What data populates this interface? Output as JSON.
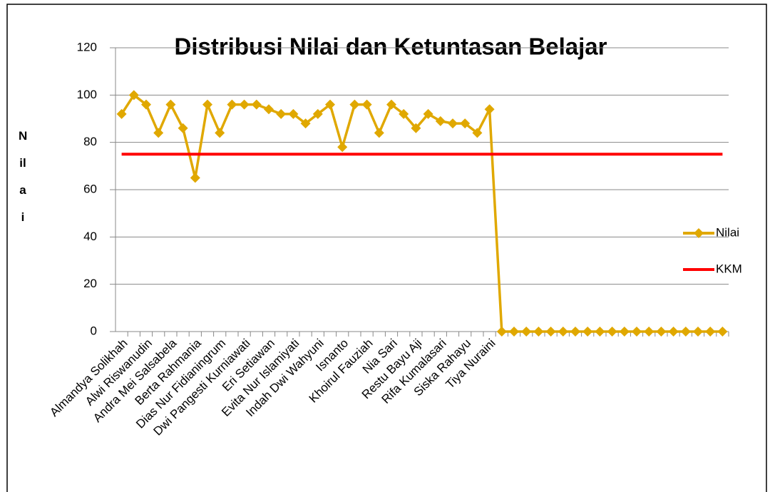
{
  "chart_data": {
    "type": "line",
    "title": "Distribusi Nilai dan Ketuntasan Belajar",
    "y_label": "Nilai",
    "categories": [
      "Almandya Solikhah",
      null,
      "Alwi Riswanudin",
      null,
      "Andra Mei Salsabela",
      null,
      "Berta Rahmania",
      null,
      "Dias Nur Fidianingrum",
      null,
      "Dwi Pangesti Kurniawati",
      null,
      "Eri Setiawan",
      null,
      "Evita Nur Islamiyati",
      null,
      "Indah Dwi Wahyuni",
      null,
      "Isnanto",
      null,
      "Khoirul Fauziah",
      null,
      "Nia Sari",
      null,
      "Restu Bayu Aji",
      null,
      "Rifa Kumalasari",
      null,
      "Siska Rahayu",
      null,
      "Tiya Nuraini",
      null,
      null,
      null,
      null,
      null,
      null,
      null,
      null,
      null,
      null,
      null,
      null,
      null,
      null,
      null,
      null,
      null,
      null,
      null
    ],
    "series": [
      {
        "name": "Nilai",
        "color": "#e0a800",
        "marker": "diamond",
        "values": [
          92,
          100,
          96,
          84,
          96,
          86,
          65,
          96,
          84,
          96,
          96,
          96,
          94,
          92,
          92,
          88,
          92,
          96,
          78,
          96,
          96,
          84,
          96,
          92,
          86,
          92,
          89,
          88,
          88,
          84,
          94,
          0,
          0,
          0,
          0,
          0,
          0,
          0,
          0,
          0,
          0,
          0,
          0,
          0,
          0,
          0,
          0,
          0,
          0,
          0
        ]
      },
      {
        "name": "KKM",
        "color": "#ff0000",
        "marker": "none",
        "values": [
          75,
          75,
          75,
          75,
          75,
          75,
          75,
          75,
          75,
          75,
          75,
          75,
          75,
          75,
          75,
          75,
          75,
          75,
          75,
          75,
          75,
          75,
          75,
          75,
          75,
          75,
          75,
          75,
          75,
          75,
          75,
          75,
          75,
          75,
          75,
          75,
          75,
          75,
          75,
          75,
          75,
          75,
          75,
          75,
          75,
          75,
          75,
          75,
          75,
          75
        ]
      }
    ],
    "ylim": [
      0,
      120
    ],
    "yticks": [
      0,
      20,
      40,
      60,
      80,
      100,
      120
    ],
    "grid": true,
    "legend": "right"
  }
}
